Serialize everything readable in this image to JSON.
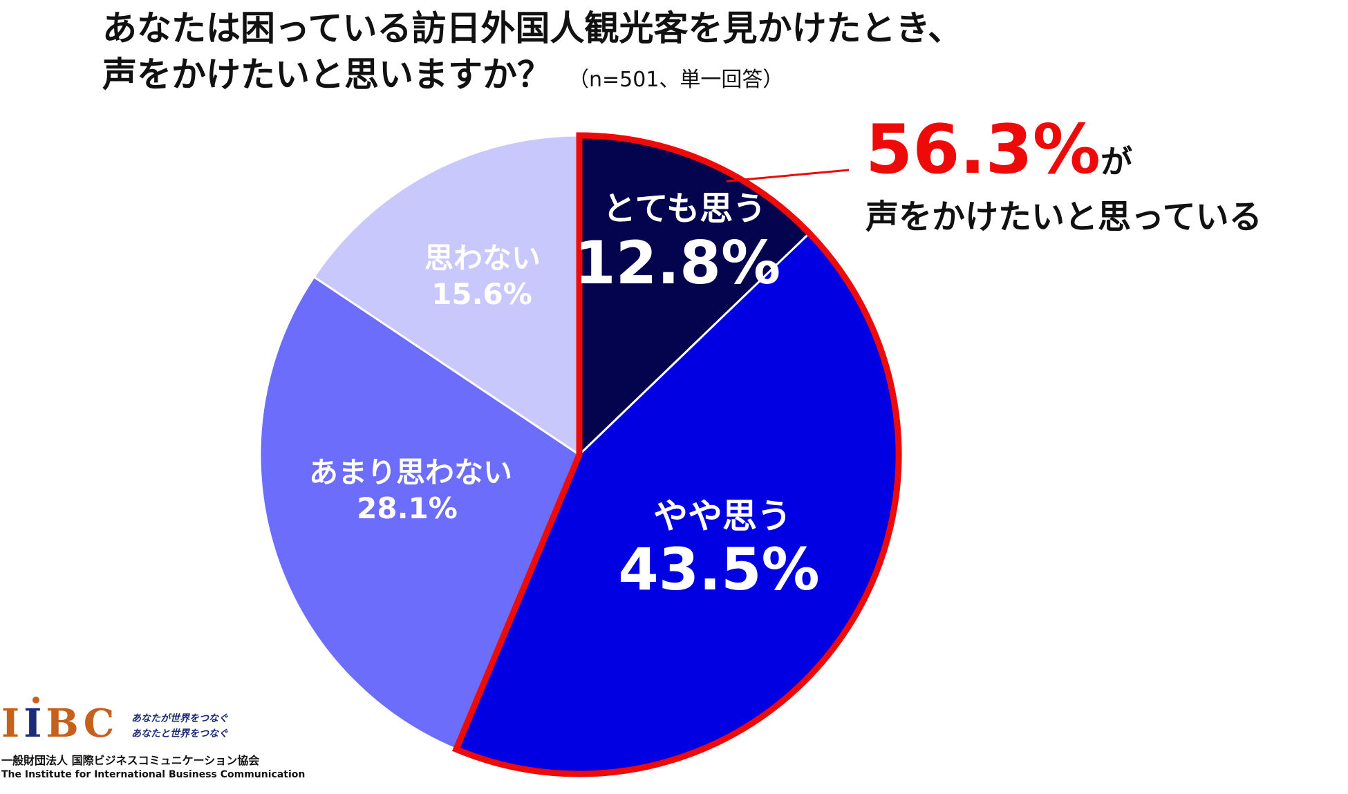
{
  "title": {
    "line1": "あなたは困っている訪日外国人観光客を見かけたとき、",
    "line2": "声をかけたいと思いますか？",
    "sample": "（n=501、単一回答）"
  },
  "chart_data": {
    "type": "pie",
    "unit": "%",
    "slices": [
      {
        "label": "とても思う",
        "value": 12.8,
        "display": "12.8%",
        "color": "#04044e"
      },
      {
        "label": "やや思う",
        "value": 43.5,
        "display": "43.5%",
        "color": "#0000e3"
      },
      {
        "label": "あまり思わない",
        "value": 28.1,
        "display": "28.1%",
        "color": "#6d6dfb"
      },
      {
        "label": "思わない",
        "value": 15.6,
        "display": "15.6%",
        "color": "#c8c8fd"
      }
    ],
    "highlight": {
      "slices": [
        "とても思う",
        "やや思う"
      ],
      "outline_color": "#ef0a0a",
      "value": "56.3%",
      "suffix": "が",
      "text": "声をかけたいと思っている"
    }
  },
  "logo": {
    "mark_letters": [
      "I",
      "I",
      "B",
      "C"
    ],
    "slogan_line1": "あなたが世界をつなぐ",
    "slogan_line2": "あなたと世界をつなぐ",
    "org_ja": "一般財団法人 国際ビジネスコミュニケーション協会",
    "org_en": "The Institute for International Business Communication"
  }
}
